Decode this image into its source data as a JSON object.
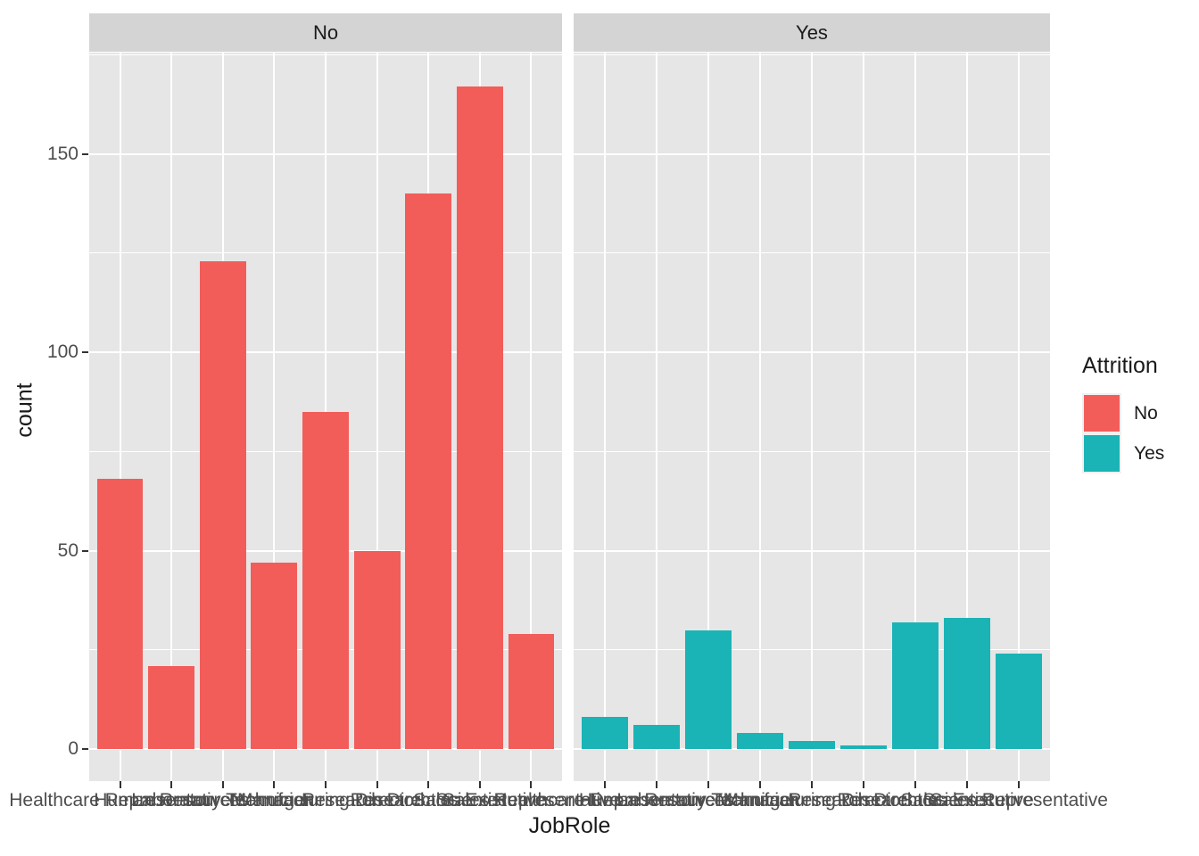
{
  "colors": {
    "background": "#FFFFFF",
    "panel_bg": "#E6E6E6",
    "strip_bg": "#D4D4D4",
    "grid": "#FFFFFF",
    "tick": "#333333",
    "axis_text": "#4D4D4D",
    "title_text": "#1A1A1A",
    "fill_no": "#F25D5A",
    "fill_yes": "#1AB4B6"
  },
  "chart_data": {
    "type": "bar",
    "facet_variable": "Attrition",
    "categories": [
      "Healthcare Representative",
      "Human Resources",
      "Laboratory Technician",
      "Manager",
      "Manufacturing Director",
      "Research Director",
      "Research Scientist",
      "Sales Executive",
      "Sales Representative"
    ],
    "facets": [
      {
        "label": "No",
        "color": "#F25D5A",
        "values": [
          68,
          21,
          123,
          47,
          85,
          50,
          140,
          167,
          29
        ]
      },
      {
        "label": "Yes",
        "color": "#1AB4B6",
        "values": [
          8,
          6,
          30,
          4,
          2,
          1,
          32,
          33,
          24
        ]
      }
    ],
    "xlabel": "JobRole",
    "ylabel": "count",
    "yticks": [
      0,
      50,
      100,
      150
    ],
    "yminor": [
      25,
      75,
      125,
      175
    ],
    "ylim": [
      0,
      175
    ],
    "grid": true,
    "legend": {
      "title": "Attrition",
      "position": "right",
      "entries": [
        {
          "label": "No",
          "color": "#F25D5A"
        },
        {
          "label": "Yes",
          "color": "#1AB4B6"
        }
      ]
    }
  }
}
